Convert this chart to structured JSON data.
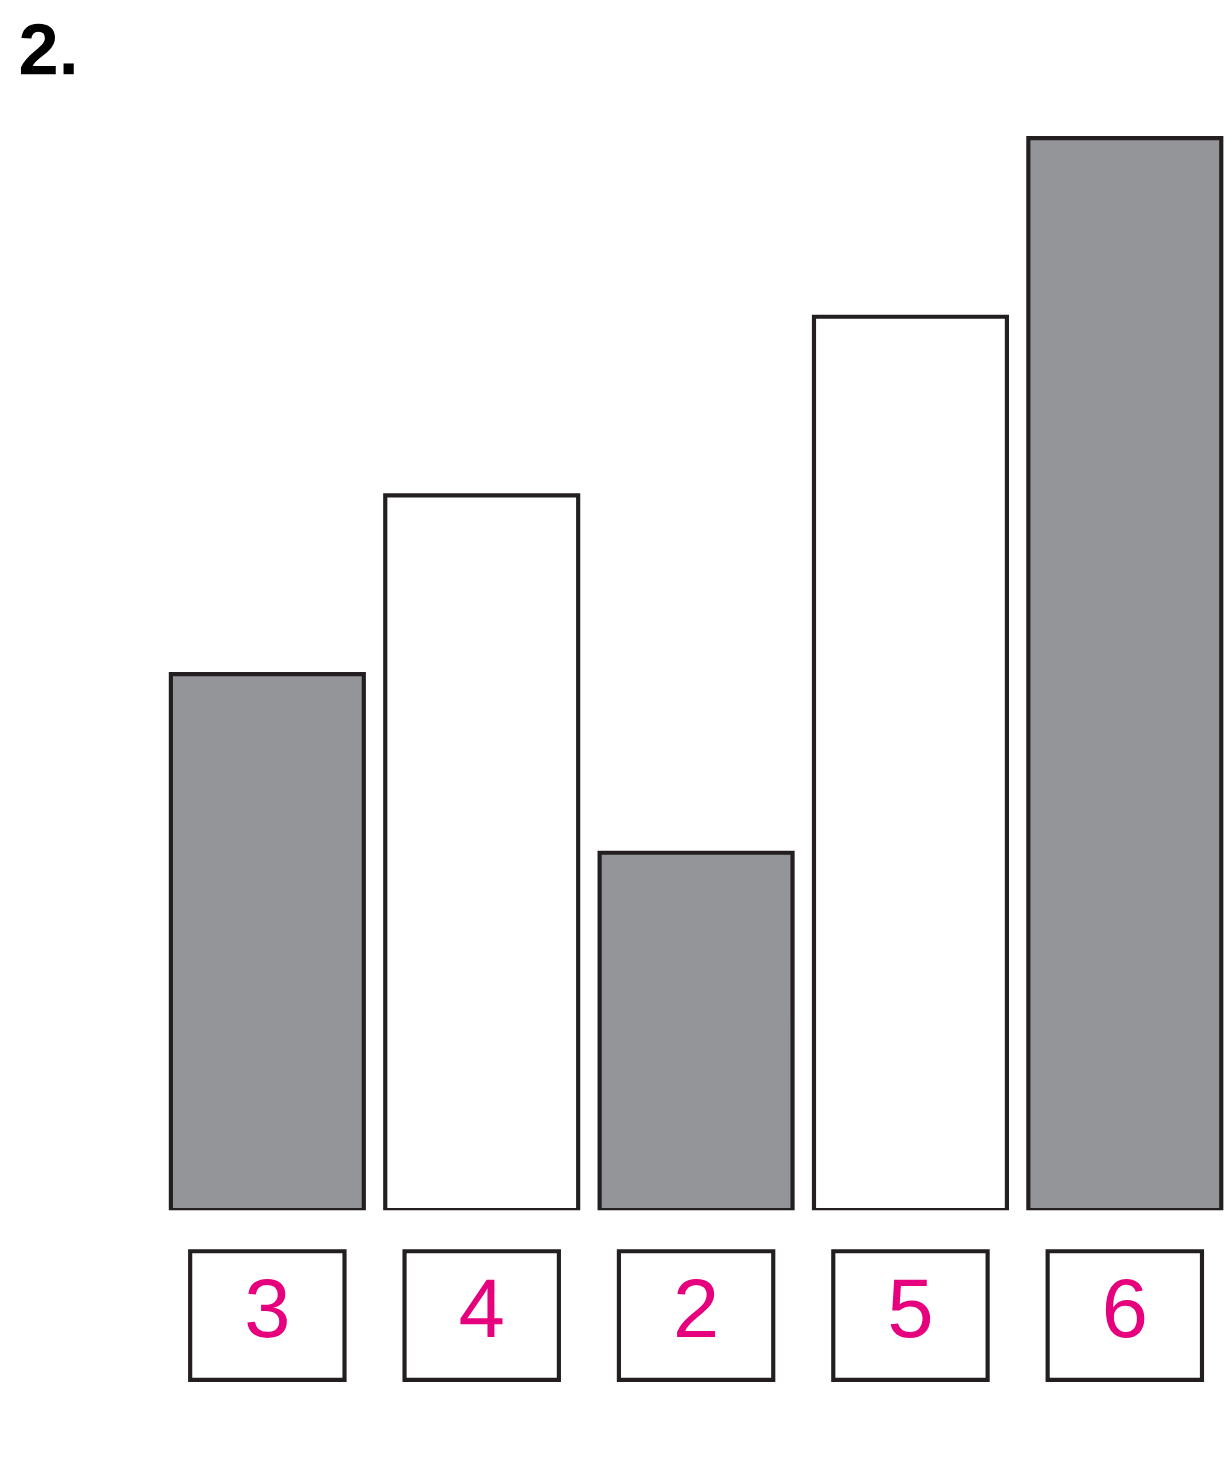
{
  "chart_data": {
    "type": "bar",
    "title": "2.",
    "categories": [
      null,
      null,
      null,
      null,
      null
    ],
    "values": [
      3,
      4,
      2,
      5,
      6
    ],
    "colors": [
      "#939598",
      "#ffffff",
      "#939598",
      "#ffffff",
      "#939598"
    ],
    "data_labels": true,
    "grid": false,
    "legend": false
  }
}
